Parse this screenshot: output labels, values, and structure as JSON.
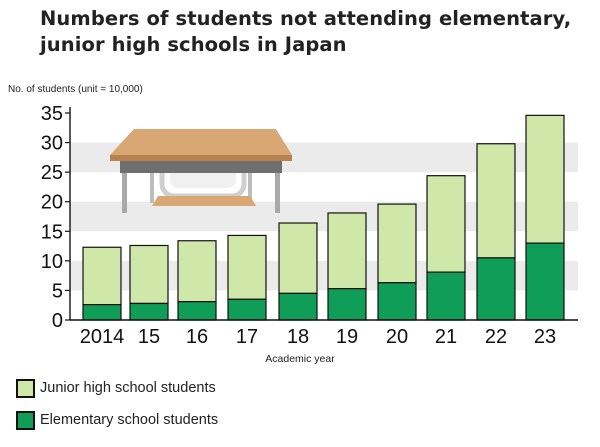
{
  "chart_data": {
    "type": "bar",
    "stacked": true,
    "title": [
      "Numbers of students not attending elementary,",
      "junior high schools in Japan"
    ],
    "ylabel": "No. of students (unit = 10,000)",
    "xlabel": "Academic year",
    "categories": [
      "2014",
      "15",
      "16",
      "17",
      "18",
      "19",
      "20",
      "21",
      "22",
      "23"
    ],
    "ylim": [
      0,
      35
    ],
    "yticks": [
      0,
      5,
      10,
      15,
      20,
      25,
      30,
      35
    ],
    "grid": "alternating horizontal bands",
    "legend_position": "bottom-left",
    "series": [
      {
        "name": "Elementary school students",
        "color": "#0f9d58",
        "values": [
          2.6,
          2.8,
          3.1,
          3.5,
          4.5,
          5.3,
          6.3,
          8.1,
          10.5,
          13.0
        ]
      },
      {
        "name": "Junior high school students",
        "color": "#cfe8a9",
        "values": [
          9.7,
          9.8,
          10.3,
          10.8,
          11.9,
          12.8,
          13.3,
          16.3,
          19.3,
          21.6
        ]
      }
    ],
    "legend_order": [
      "Junior high school students",
      "Elementary school students"
    ]
  },
  "illustration": "school desk and chair"
}
